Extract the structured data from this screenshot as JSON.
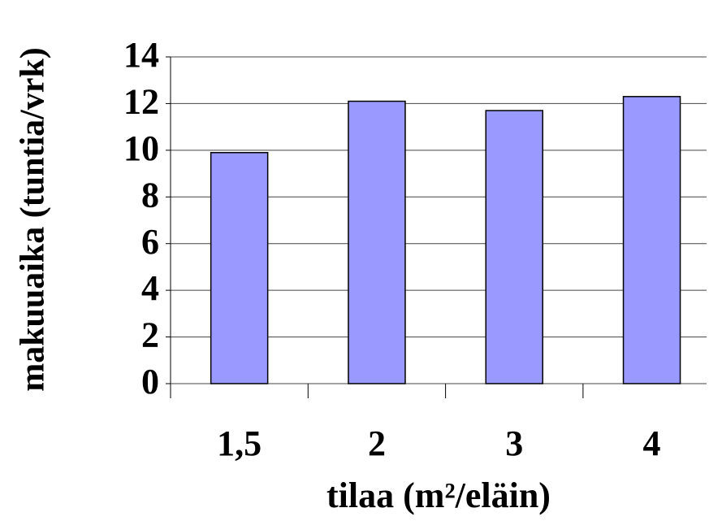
{
  "chart_data": {
    "type": "bar",
    "x_label": "tilaa (m²/eläin)",
    "y_label": "makuuaika (tuntia/vrk)",
    "categories": [
      "1,5",
      "2",
      "3",
      "4"
    ],
    "values": [
      9.9,
      12.1,
      11.7,
      12.3
    ],
    "color": "#9999ff",
    "ylim": [
      0,
      14
    ],
    "yticks": [
      0,
      2,
      4,
      6,
      8,
      10,
      12,
      14
    ],
    "grid": true
  }
}
